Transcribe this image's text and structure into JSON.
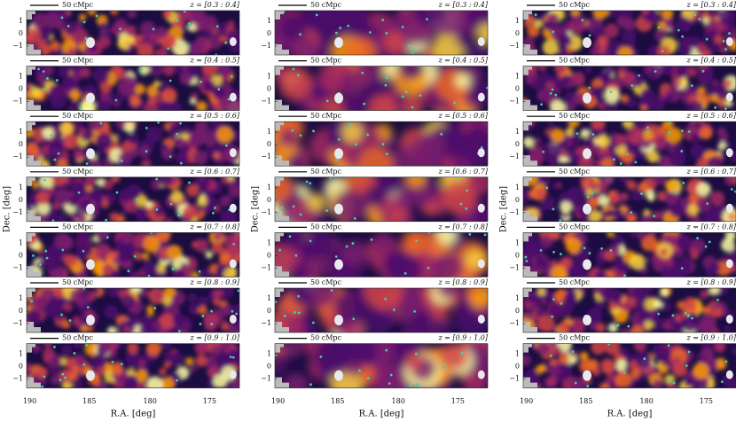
{
  "scale_bar": "50 cMpc",
  "panels": [
    "z = [0.3 : 0.4]",
    "z = [0.4 : 0.5]",
    "z = [0.5 : 0.6]",
    "z = [0.6 : 0.7]",
    "z = [0.7 : 0.8]",
    "z = [0.8 : 0.9]",
    "z = [0.9 : 1.0]"
  ],
  "x_axis": {
    "label": "R.A. [deg]",
    "ticks": [
      "190",
      "185",
      "180",
      "175"
    ]
  },
  "y_axis": {
    "label": "Dec. [deg]",
    "ticks": [
      "1",
      "0",
      "−1"
    ]
  }
}
